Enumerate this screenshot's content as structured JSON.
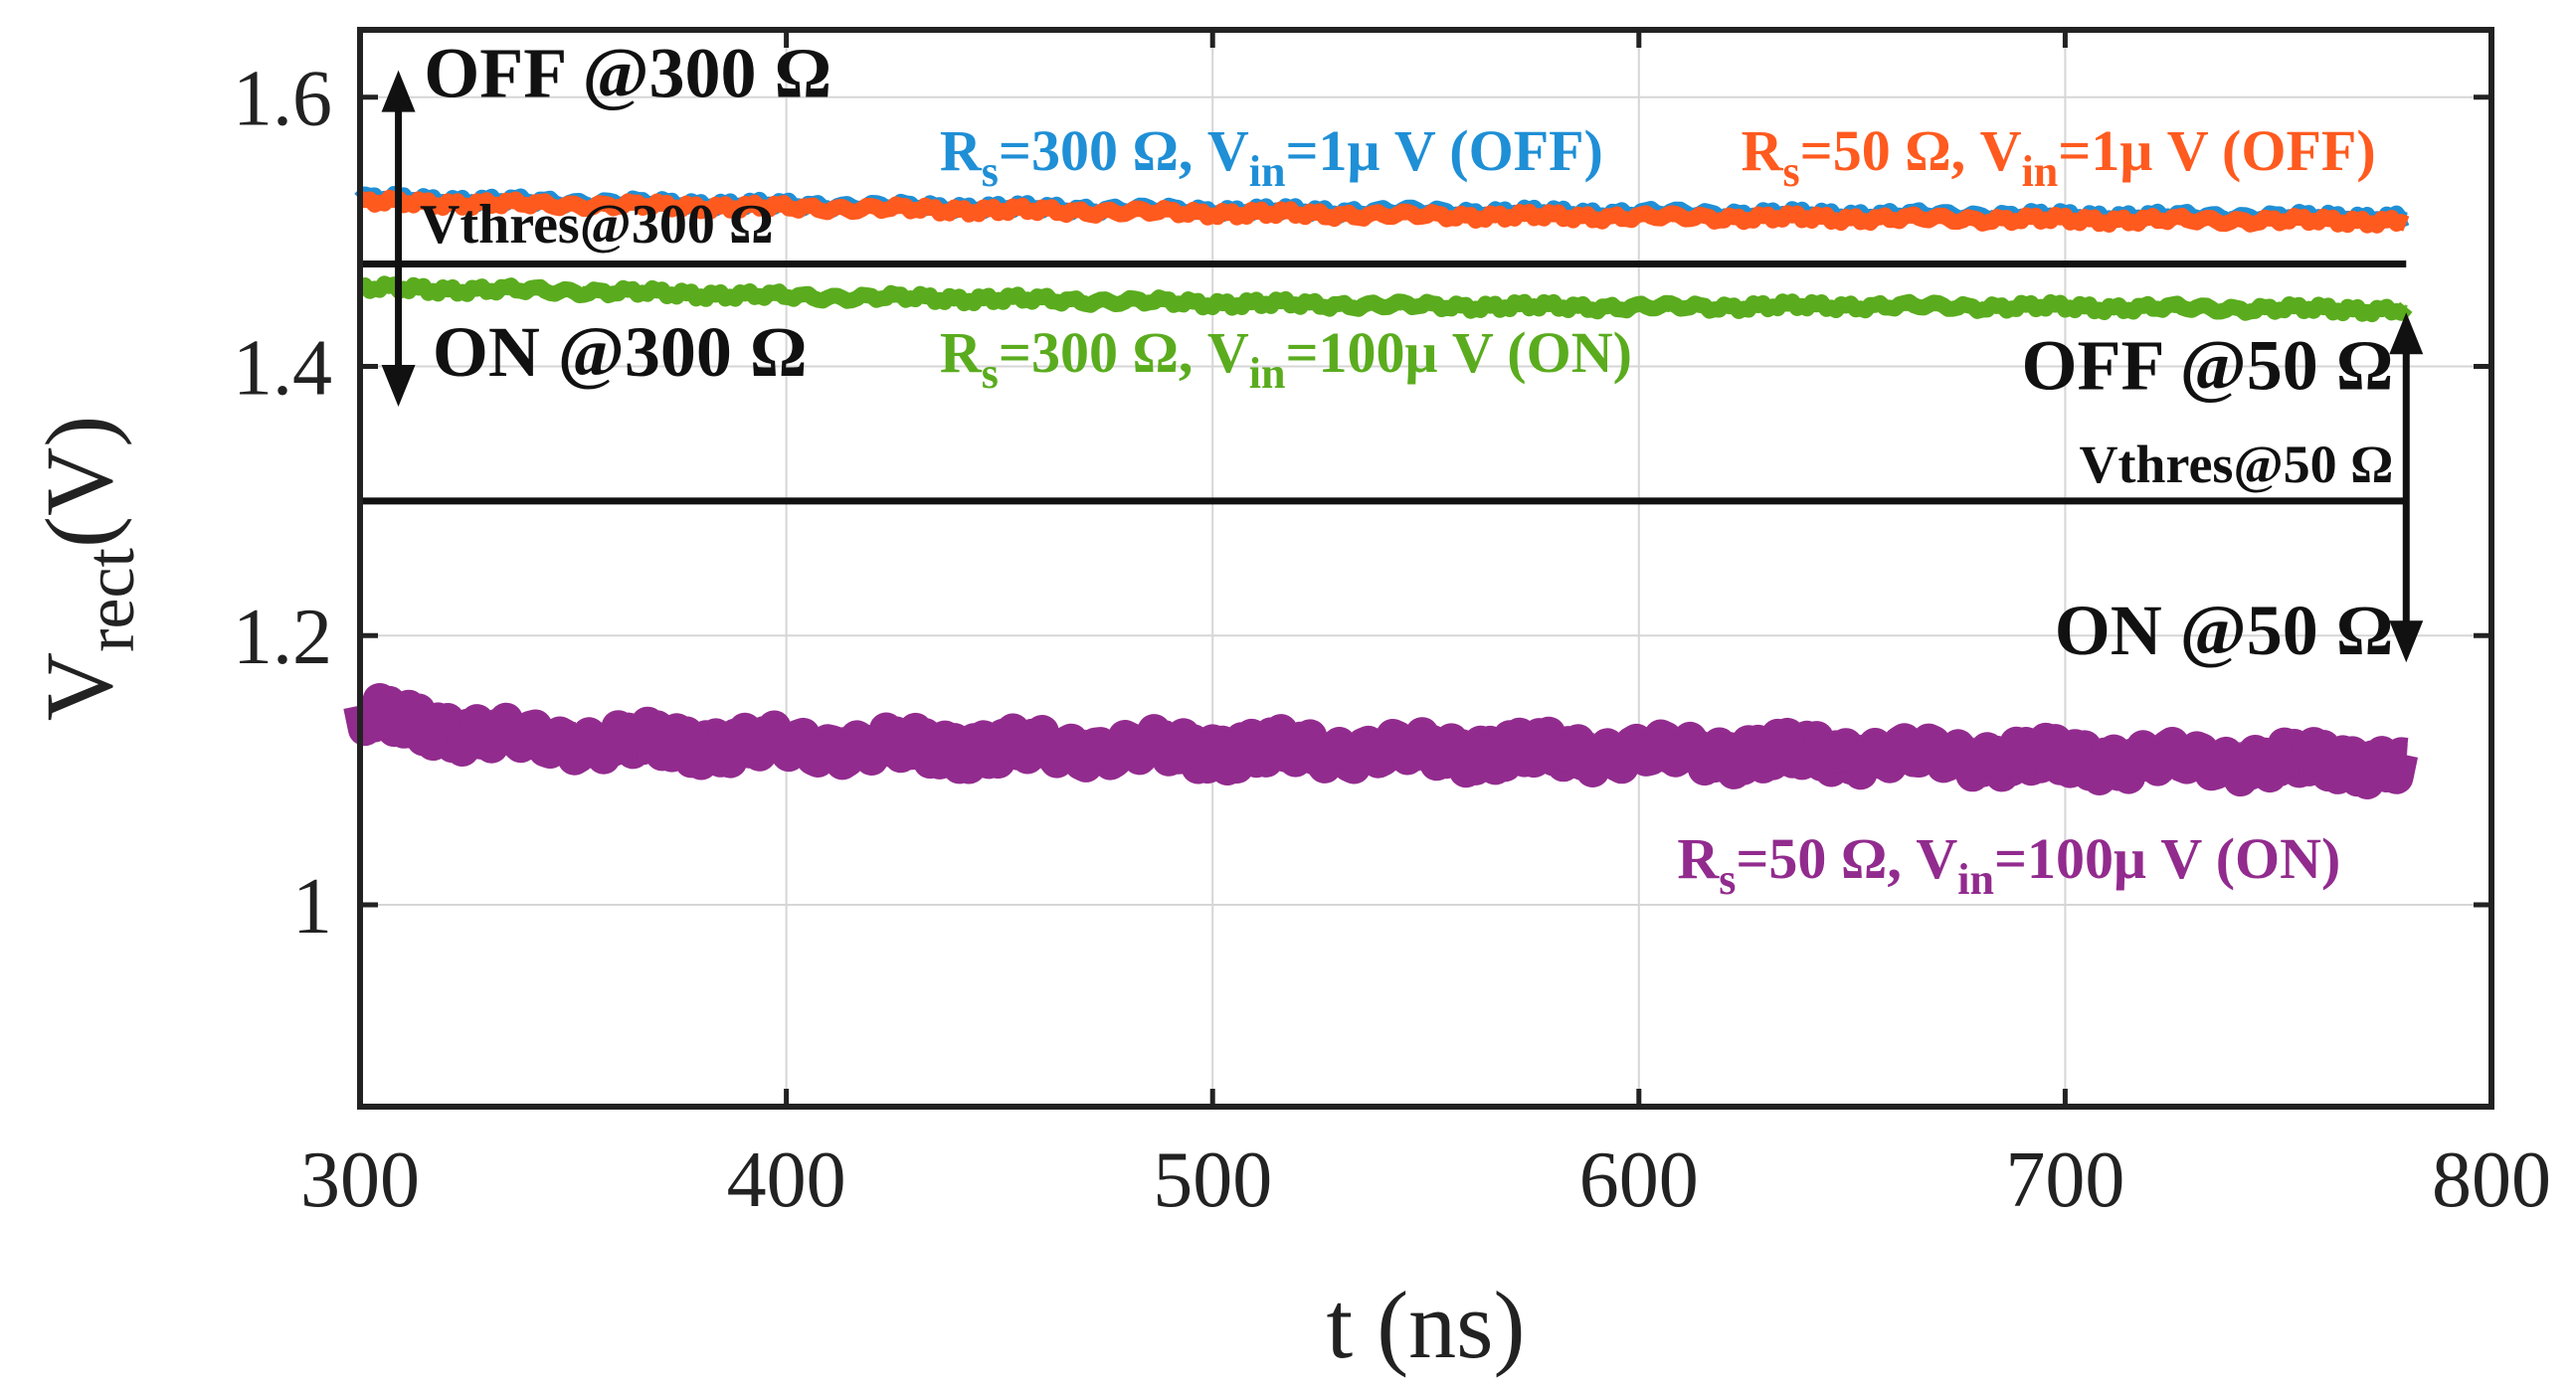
{
  "chart_data": {
    "type": "line",
    "title": "",
    "xlabel": "t (ns)",
    "ylabel": {
      "main": "V",
      "sub": "rect",
      "unit": "(V)"
    },
    "xlim": [
      300,
      800
    ],
    "ylim": [
      0.85,
      1.65
    ],
    "xticks": [
      300,
      400,
      500,
      600,
      700,
      800
    ],
    "yticks": [
      1.0,
      1.2,
      1.4,
      1.6
    ],
    "ytick_labels": [
      "1",
      "1.2",
      "1.4",
      "1.6"
    ],
    "grid": true,
    "series": [
      {
        "name": "Rs=300 Ω, Vin=1μV (OFF)",
        "color": "#1f8fd6",
        "x": [
          300,
          350,
          400,
          450,
          500,
          550,
          600,
          650,
          700,
          780
        ],
        "y": [
          1.525,
          1.522,
          1.52,
          1.518,
          1.516,
          1.515,
          1.514,
          1.513,
          1.512,
          1.511
        ],
        "noise": 0.004
      },
      {
        "name": "Rs=50 Ω, Vin=1μV (OFF)",
        "color": "#ff5a1f",
        "x": [
          300,
          350,
          400,
          450,
          500,
          550,
          600,
          650,
          700,
          780
        ],
        "y": [
          1.522,
          1.52,
          1.518,
          1.516,
          1.514,
          1.512,
          1.511,
          1.51,
          1.509,
          1.508
        ],
        "noise": 0.004
      },
      {
        "name": "Rs=300 Ω, Vin=100μV (ON)",
        "color": "#5aac1e",
        "x": [
          300,
          350,
          400,
          450,
          500,
          550,
          600,
          650,
          700,
          780
        ],
        "y": [
          1.458,
          1.456,
          1.452,
          1.45,
          1.447,
          1.445,
          1.444,
          1.445,
          1.444,
          1.442
        ],
        "noise": 0.004
      },
      {
        "name": "Rs=50 Ω, Vin=100μV (ON)",
        "color": "#922b8e",
        "x": [
          300,
          340,
          400,
          450,
          500,
          550,
          600,
          650,
          700,
          780
        ],
        "y": [
          1.14,
          1.122,
          1.118,
          1.116,
          1.115,
          1.114,
          1.113,
          1.112,
          1.108,
          1.105
        ],
        "noise": 0.016
      }
    ],
    "thresholds": [
      {
        "name": "Vthres@300 Ω",
        "y": 1.476,
        "x": [
          300,
          780
        ]
      },
      {
        "name": "Vthres@50 Ω",
        "y": 1.3,
        "x": [
          300,
          780
        ]
      }
    ],
    "arrows": [
      {
        "name": "arrow-300-ohm",
        "x": 309,
        "y_top": 1.62,
        "y_bottom": 1.37
      },
      {
        "name": "arrow-50-ohm",
        "x": 780,
        "y_top": 1.44,
        "y_bottom": 1.18
      }
    ],
    "annotations": {
      "off300": {
        "text": "OFF @300 Ω",
        "x": 315,
        "y": 1.6
      },
      "vthres300": {
        "text": "Vthres@300 Ω",
        "x": 314,
        "y": 1.492
      },
      "on300": {
        "text": "ON @300 Ω",
        "x": 317,
        "y": 1.393
      },
      "off50": {
        "text": "OFF @50 Ω",
        "x": 777,
        "y": 1.383
      },
      "vthres50": {
        "text": "Vthres@50 Ω",
        "x": 777,
        "y": 1.314
      },
      "on50": {
        "text": "ON @50 Ω",
        "x": 777,
        "y": 1.186
      }
    },
    "series_labels": [
      {
        "series": 0,
        "parts": [
          "R",
          "s",
          "=300 Ω, V",
          "in",
          "=1μ V (OFF)"
        ],
        "x": 436,
        "y": 1.546,
        "color": "#1f8fd6"
      },
      {
        "series": 1,
        "parts": [
          "R",
          "s",
          "=50 Ω, V",
          "in",
          "=1μ V (OFF)"
        ],
        "x": 624,
        "y": 1.546,
        "color": "#ff5a1f"
      },
      {
        "series": 2,
        "parts": [
          "R",
          "s",
          "=300 Ω, V",
          "in",
          "=100μ V (ON)"
        ],
        "x": 436,
        "y": 1.396,
        "color": "#5aac1e"
      },
      {
        "series": 3,
        "parts": [
          "R",
          "s",
          "=50 Ω, V",
          "in",
          "=100μ V (ON)"
        ],
        "x": 609,
        "y": 1.02,
        "color": "#922b8e"
      }
    ]
  }
}
